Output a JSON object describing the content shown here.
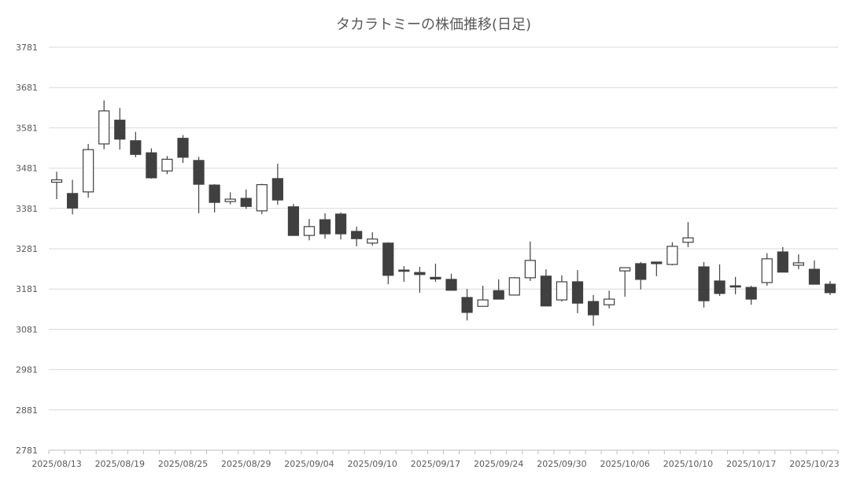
{
  "chart_data": {
    "type": "candlestick",
    "title": "タカラトミーの株価推移(日足)",
    "xlabel": "",
    "ylabel": "",
    "ylim": [
      2781,
      3781
    ],
    "yticks": [
      2781,
      2881,
      2981,
      3081,
      3181,
      3281,
      3381,
      3481,
      3581,
      3681,
      3781
    ],
    "xtick_labels": [
      "2025/08/13",
      "2025/08/19",
      "2025/08/25",
      "2025/08/29",
      "2025/09/04",
      "2025/09/10",
      "2025/09/17",
      "2025/09/24",
      "2025/09/30",
      "2025/10/06",
      "2025/10/10",
      "2025/10/17",
      "2025/10/23"
    ],
    "xtick_every": 4,
    "grid": true,
    "colors": {
      "up_fill": "#ffffff",
      "down_fill": "#404040",
      "stroke": "#404040",
      "grid": "#d9d9d9"
    },
    "ohlc": [
      [
        3446,
        3472,
        3404,
        3452
      ],
      [
        3418,
        3452,
        3366,
        3382
      ],
      [
        3422,
        3541,
        3408,
        3527
      ],
      [
        3541,
        3649,
        3528,
        3623
      ],
      [
        3600,
        3630,
        3527,
        3553
      ],
      [
        3549,
        3571,
        3508,
        3515
      ],
      [
        3519,
        3530,
        3455,
        3457
      ],
      [
        3474,
        3511,
        3466,
        3503
      ],
      [
        3555,
        3563,
        3494,
        3508
      ],
      [
        3500,
        3509,
        3369,
        3441
      ],
      [
        3439,
        3441,
        3371,
        3396
      ],
      [
        3398,
        3421,
        3391,
        3404
      ],
      [
        3406,
        3428,
        3380,
        3386
      ],
      [
        3375,
        3442,
        3367,
        3440
      ],
      [
        3455,
        3492,
        3390,
        3402
      ],
      [
        3385,
        3392,
        3314,
        3314
      ],
      [
        3314,
        3355,
        3302,
        3336
      ],
      [
        3353,
        3369,
        3306,
        3318
      ],
      [
        3367,
        3371,
        3304,
        3318
      ],
      [
        3324,
        3336,
        3287,
        3306
      ],
      [
        3295,
        3322,
        3289,
        3305
      ],
      [
        3295,
        3297,
        3193,
        3215
      ],
      [
        3228,
        3238,
        3199,
        3226
      ],
      [
        3222,
        3236,
        3172,
        3217
      ],
      [
        3210,
        3244,
        3199,
        3206
      ],
      [
        3205,
        3219,
        3178,
        3178
      ],
      [
        3160,
        3181,
        3103,
        3123
      ],
      [
        3138,
        3189,
        3138,
        3154
      ],
      [
        3177,
        3205,
        3156,
        3156
      ],
      [
        3166,
        3211,
        3166,
        3209
      ],
      [
        3209,
        3299,
        3201,
        3252
      ],
      [
        3213,
        3230,
        3139,
        3139
      ],
      [
        3154,
        3215,
        3150,
        3199
      ],
      [
        3199,
        3228,
        3121,
        3146
      ],
      [
        3150,
        3166,
        3090,
        3117
      ],
      [
        3142,
        3177,
        3133,
        3156
      ],
      [
        3226,
        3234,
        3162,
        3234
      ],
      [
        3244,
        3248,
        3180,
        3205
      ],
      [
        3248,
        3248,
        3213,
        3244
      ],
      [
        3242,
        3297,
        3240,
        3287
      ],
      [
        3297,
        3347,
        3285,
        3308
      ],
      [
        3236,
        3248,
        3135,
        3152
      ],
      [
        3201,
        3242,
        3164,
        3170
      ],
      [
        3189,
        3211,
        3168,
        3186
      ],
      [
        3185,
        3189,
        3142,
        3156
      ],
      [
        3197,
        3270,
        3189,
        3256
      ],
      [
        3273,
        3285,
        3223,
        3223
      ],
      [
        3240,
        3267,
        3230,
        3246
      ],
      [
        3230,
        3252,
        3193,
        3193
      ],
      [
        3193,
        3201,
        3166,
        3172
      ]
    ],
    "ohlc_fields": [
      "open",
      "high",
      "low",
      "close"
    ]
  }
}
